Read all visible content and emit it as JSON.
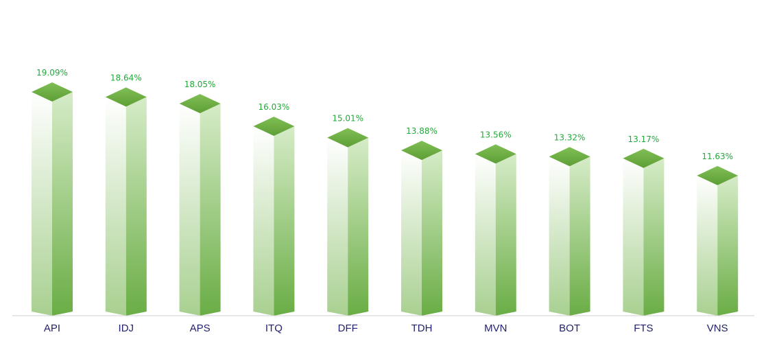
{
  "chart_data": {
    "type": "bar",
    "categories": [
      "API",
      "IDJ",
      "APS",
      "ITQ",
      "DFF",
      "TDH",
      "MVN",
      "BOT",
      "FTS",
      "VNS"
    ],
    "values": [
      19.09,
      18.64,
      18.05,
      16.03,
      15.01,
      13.88,
      13.56,
      13.32,
      13.17,
      11.63
    ],
    "value_labels": [
      "19.09%",
      "18.64%",
      "18.05%",
      "16.03%",
      "15.01%",
      "13.88%",
      "13.56%",
      "13.32%",
      "13.17%",
      "11.63%"
    ],
    "title": "",
    "xlabel": "",
    "ylabel": "",
    "ylim": [
      0,
      19.09
    ],
    "grid": false,
    "legend": "none",
    "style": "3d-column",
    "colors": {
      "bar_top": "#5e9e36",
      "bar_front_light": "#ffffff",
      "bar_front_dark": "#a8d090",
      "bar_side_light": "#d6ecc8",
      "bar_side_dark": "#6aad45",
      "value_label": "#22a83a",
      "category_label": "#1f1f6b",
      "axis_line": "#cfcfcf"
    }
  }
}
